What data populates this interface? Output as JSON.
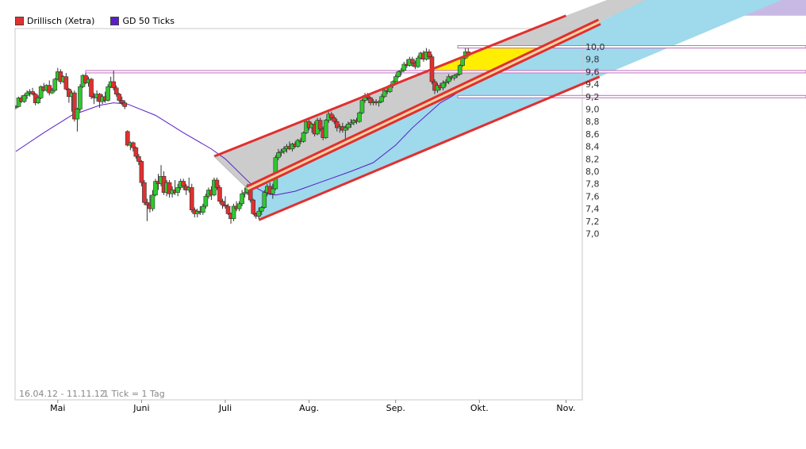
{
  "legend": {
    "price_label": "Drillisch (Xetra)",
    "price_color": "#e03030",
    "ma_label": "GD 50 Ticks",
    "ma_color": "#5a1ec8"
  },
  "footer": {
    "date_range": "16.04.12 - 11.11.12",
    "tick_info": "1 Tick = 1 Tag"
  },
  "chart_data": {
    "type": "candlestick",
    "instrument": "Drillisch (Xetra)",
    "ylim": [
      6.9,
      10.1
    ],
    "y_ticks": [
      "7,0",
      "7,2",
      "7,4",
      "7,6",
      "7,8",
      "8,0",
      "8,2",
      "8,4",
      "8,6",
      "8,8",
      "9,0",
      "9,2",
      "9,4",
      "9,6",
      "9,8",
      "10,0"
    ],
    "y_tick_values": [
      7.0,
      7.2,
      7.4,
      7.6,
      7.8,
      8.0,
      8.2,
      8.4,
      8.6,
      8.8,
      9.0,
      9.2,
      9.4,
      9.6,
      9.8,
      10.0
    ],
    "x_labels": [
      "Mai",
      "Juni",
      "Juli",
      "Aug.",
      "Sep.",
      "Okt.",
      "Nov."
    ],
    "x_label_days": [
      15,
      45,
      75,
      105,
      136,
      166,
      197
    ],
    "x_range_days": [
      0,
      209
    ],
    "grid": false,
    "legend_placement": "top-left",
    "up_color": "#2ec82e",
    "down_color": "#e03030",
    "candles": [
      [
        0,
        9.02,
        9.06,
        9.0,
        9.04
      ],
      [
        1,
        9.04,
        9.2,
        9.03,
        9.18
      ],
      [
        2,
        9.18,
        9.22,
        9.1,
        9.12
      ],
      [
        3,
        9.12,
        9.24,
        9.1,
        9.22
      ],
      [
        4,
        9.22,
        9.3,
        9.16,
        9.26
      ],
      [
        5,
        9.26,
        9.32,
        9.2,
        9.28
      ],
      [
        6,
        9.28,
        9.34,
        9.22,
        9.24
      ],
      [
        7,
        9.24,
        9.26,
        9.06,
        9.1
      ],
      [
        8,
        9.1,
        9.22,
        9.08,
        9.18
      ],
      [
        9,
        9.18,
        9.38,
        9.16,
        9.36
      ],
      [
        10,
        9.36,
        9.42,
        9.28,
        9.3
      ],
      [
        11,
        9.3,
        9.4,
        9.28,
        9.38
      ],
      [
        12,
        9.38,
        9.46,
        9.22,
        9.26
      ],
      [
        13,
        9.26,
        9.34,
        9.24,
        9.3
      ],
      [
        14,
        9.3,
        9.5,
        9.28,
        9.48
      ],
      [
        15,
        9.48,
        9.66,
        9.46,
        9.6
      ],
      [
        16,
        9.6,
        9.64,
        9.4,
        9.44
      ],
      [
        17,
        9.44,
        9.54,
        9.42,
        9.52
      ],
      [
        18,
        9.52,
        9.58,
        9.3,
        9.32
      ],
      [
        19,
        9.32,
        9.34,
        9.1,
        9.2
      ],
      [
        20,
        9.2,
        9.3,
        8.96,
        9.26
      ],
      [
        21,
        9.26,
        9.3,
        8.8,
        8.84
      ],
      [
        22,
        8.84,
        9.02,
        8.64,
        9.0
      ],
      [
        23,
        9.0,
        9.4,
        8.96,
        9.36
      ],
      [
        24,
        9.36,
        9.56,
        9.34,
        9.54
      ],
      [
        25,
        9.54,
        9.58,
        9.4,
        9.42
      ],
      [
        26,
        9.42,
        9.52,
        9.36,
        9.48
      ],
      [
        27,
        9.48,
        9.5,
        9.16,
        9.2
      ],
      [
        28,
        9.2,
        9.26,
        9.08,
        9.18
      ],
      [
        29,
        9.18,
        9.3,
        9.12,
        9.24
      ],
      [
        30,
        9.24,
        9.26,
        9.02,
        9.12
      ],
      [
        31,
        9.12,
        9.24,
        9.08,
        9.2
      ],
      [
        32,
        9.2,
        9.28,
        9.1,
        9.14
      ],
      [
        33,
        9.14,
        9.4,
        9.12,
        9.36
      ],
      [
        34,
        9.36,
        9.52,
        9.34,
        9.44
      ],
      [
        35,
        9.44,
        9.62,
        9.3,
        9.34
      ],
      [
        36,
        9.34,
        9.38,
        9.2,
        9.24
      ],
      [
        37,
        9.24,
        9.26,
        9.1,
        9.14
      ],
      [
        38,
        9.14,
        9.2,
        9.06,
        9.1
      ],
      [
        39,
        9.1,
        9.14,
        9.0,
        9.04
      ],
      [
        40,
        8.64,
        8.66,
        8.4,
        8.42
      ],
      [
        41,
        8.42,
        8.48,
        8.34,
        8.46
      ],
      [
        42,
        8.46,
        8.48,
        8.32,
        8.38
      ],
      [
        43,
        8.38,
        8.4,
        8.2,
        8.24
      ],
      [
        44,
        8.24,
        8.28,
        8.1,
        8.16
      ],
      [
        45,
        8.16,
        8.18,
        7.76,
        7.82
      ],
      [
        46,
        7.82,
        7.86,
        7.46,
        7.5
      ],
      [
        47,
        7.5,
        7.56,
        7.2,
        7.46
      ],
      [
        48,
        7.46,
        7.62,
        7.34,
        7.4
      ],
      [
        49,
        7.4,
        7.7,
        7.36,
        7.62
      ],
      [
        50,
        7.62,
        7.88,
        7.6,
        7.84
      ],
      [
        51,
        7.84,
        7.96,
        7.7,
        7.8
      ],
      [
        52,
        7.8,
        8.1,
        7.76,
        7.92
      ],
      [
        53,
        7.92,
        8.0,
        7.62,
        7.66
      ],
      [
        54,
        7.66,
        7.86,
        7.6,
        7.82
      ],
      [
        55,
        7.82,
        7.86,
        7.58,
        7.64
      ],
      [
        56,
        7.64,
        7.76,
        7.58,
        7.7
      ],
      [
        57,
        7.7,
        7.86,
        7.62,
        7.66
      ],
      [
        58,
        7.66,
        7.8,
        7.6,
        7.74
      ],
      [
        59,
        7.74,
        7.88,
        7.7,
        7.84
      ],
      [
        60,
        7.84,
        7.88,
        7.7,
        7.76
      ],
      [
        61,
        7.76,
        7.8,
        7.62,
        7.7
      ],
      [
        62,
        7.7,
        7.9,
        7.66,
        7.74
      ],
      [
        63,
        7.74,
        7.8,
        7.34,
        7.38
      ],
      [
        64,
        7.38,
        7.42,
        7.26,
        7.32
      ],
      [
        65,
        7.32,
        7.4,
        7.26,
        7.36
      ],
      [
        66,
        7.36,
        7.44,
        7.3,
        7.34
      ],
      [
        67,
        7.34,
        7.48,
        7.3,
        7.44
      ],
      [
        68,
        7.44,
        7.64,
        7.4,
        7.6
      ],
      [
        69,
        7.6,
        7.74,
        7.56,
        7.7
      ],
      [
        70,
        7.7,
        7.76,
        7.54,
        7.62
      ],
      [
        71,
        7.62,
        7.9,
        7.6,
        7.86
      ],
      [
        72,
        7.86,
        7.9,
        7.7,
        7.74
      ],
      [
        73,
        7.74,
        7.78,
        7.48,
        7.52
      ],
      [
        74,
        7.52,
        7.56,
        7.4,
        7.46
      ],
      [
        75,
        7.46,
        7.6,
        7.4,
        7.44
      ],
      [
        76,
        7.44,
        7.48,
        7.3,
        7.32
      ],
      [
        77,
        7.32,
        7.34,
        7.16,
        7.24
      ],
      [
        78,
        7.24,
        7.48,
        7.2,
        7.44
      ],
      [
        79,
        7.44,
        7.52,
        7.36,
        7.4
      ],
      [
        80,
        7.4,
        7.52,
        7.36,
        7.48
      ],
      [
        81,
        7.48,
        7.7,
        7.44,
        7.64
      ],
      [
        82,
        7.64,
        7.74,
        7.58,
        7.66
      ],
      [
        83,
        7.66,
        7.8,
        7.62,
        7.76
      ],
      [
        84,
        7.76,
        7.78,
        7.5,
        7.54
      ],
      [
        85,
        7.54,
        7.56,
        7.3,
        7.32
      ],
      [
        86,
        7.32,
        7.34,
        7.24,
        7.28
      ],
      [
        87,
        7.28,
        7.42,
        7.24,
        7.36
      ],
      [
        88,
        7.36,
        7.44,
        7.3,
        7.42
      ],
      [
        89,
        7.42,
        7.7,
        7.4,
        7.66
      ],
      [
        90,
        7.66,
        7.8,
        7.6,
        7.76
      ],
      [
        91,
        7.76,
        7.82,
        7.62,
        7.64
      ],
      [
        92,
        7.64,
        7.8,
        7.56,
        7.72
      ],
      [
        93,
        7.72,
        8.26,
        7.7,
        8.22
      ],
      [
        94,
        8.22,
        8.36,
        8.18,
        8.3
      ],
      [
        95,
        8.3,
        8.36,
        8.24,
        8.32
      ],
      [
        96,
        8.32,
        8.4,
        8.28,
        8.36
      ],
      [
        97,
        8.36,
        8.44,
        8.3,
        8.4
      ],
      [
        98,
        8.4,
        8.48,
        8.34,
        8.36
      ],
      [
        99,
        8.36,
        8.46,
        8.32,
        8.44
      ],
      [
        100,
        8.44,
        8.48,
        8.38,
        8.4
      ],
      [
        101,
        8.4,
        8.52,
        8.38,
        8.5
      ],
      [
        102,
        8.5,
        8.54,
        8.44,
        8.48
      ],
      [
        103,
        8.48,
        8.64,
        8.46,
        8.62
      ],
      [
        104,
        8.62,
        8.84,
        8.6,
        8.8
      ],
      [
        105,
        8.8,
        8.86,
        8.66,
        8.7
      ],
      [
        106,
        8.7,
        8.78,
        8.62,
        8.76
      ],
      [
        107,
        8.76,
        8.8,
        8.56,
        8.6
      ],
      [
        108,
        8.6,
        8.86,
        8.58,
        8.82
      ],
      [
        109,
        8.82,
        8.86,
        8.64,
        8.68
      ],
      [
        110,
        8.68,
        8.72,
        8.5,
        8.54
      ],
      [
        111,
        8.54,
        8.84,
        8.52,
        8.82
      ],
      [
        112,
        8.82,
        8.98,
        8.78,
        8.92
      ],
      [
        113,
        8.92,
        8.96,
        8.82,
        8.86
      ],
      [
        114,
        8.86,
        8.9,
        8.76,
        8.8
      ],
      [
        115,
        8.8,
        8.84,
        8.64,
        8.7
      ],
      [
        116,
        8.7,
        8.76,
        8.62,
        8.72
      ],
      [
        117,
        8.72,
        8.78,
        8.62,
        8.66
      ],
      [
        118,
        8.66,
        8.74,
        8.48,
        8.7
      ],
      [
        119,
        8.7,
        8.8,
        8.66,
        8.76
      ],
      [
        120,
        8.76,
        8.84,
        8.7,
        8.78
      ],
      [
        121,
        8.78,
        8.84,
        8.74,
        8.82
      ],
      [
        122,
        8.82,
        8.86,
        8.76,
        8.8
      ],
      [
        123,
        8.8,
        8.96,
        8.78,
        8.94
      ],
      [
        124,
        8.94,
        9.16,
        8.92,
        9.14
      ],
      [
        125,
        9.14,
        9.26,
        9.1,
        9.22
      ],
      [
        126,
        9.22,
        9.26,
        9.14,
        9.18
      ],
      [
        127,
        9.18,
        9.2,
        9.06,
        9.1
      ],
      [
        128,
        9.1,
        9.16,
        9.06,
        9.12
      ],
      [
        129,
        9.12,
        9.16,
        9.06,
        9.1
      ],
      [
        130,
        9.1,
        9.14,
        9.04,
        9.12
      ],
      [
        131,
        9.12,
        9.24,
        9.1,
        9.2
      ],
      [
        132,
        9.2,
        9.32,
        9.18,
        9.3
      ],
      [
        133,
        9.3,
        9.36,
        9.24,
        9.28
      ],
      [
        134,
        9.28,
        9.4,
        9.26,
        9.38
      ],
      [
        135,
        9.38,
        9.46,
        9.34,
        9.44
      ],
      [
        136,
        9.44,
        9.56,
        9.42,
        9.52
      ],
      [
        137,
        9.52,
        9.62,
        9.5,
        9.6
      ],
      [
        138,
        9.6,
        9.66,
        9.54,
        9.62
      ],
      [
        139,
        9.62,
        9.76,
        9.6,
        9.72
      ],
      [
        140,
        9.72,
        9.8,
        9.66,
        9.7
      ],
      [
        141,
        9.7,
        9.84,
        9.68,
        9.8
      ],
      [
        142,
        9.8,
        9.84,
        9.68,
        9.74
      ],
      [
        143,
        9.74,
        9.78,
        9.64,
        9.68
      ],
      [
        144,
        9.68,
        9.86,
        9.66,
        9.82
      ],
      [
        145,
        9.82,
        9.92,
        9.8,
        9.9
      ],
      [
        146,
        9.9,
        9.94,
        9.76,
        9.8
      ],
      [
        147,
        9.8,
        9.98,
        9.78,
        9.92
      ],
      [
        148,
        9.92,
        9.96,
        9.8,
        9.84
      ],
      [
        149,
        9.84,
        9.88,
        9.4,
        9.44
      ],
      [
        150,
        9.44,
        9.48,
        9.24,
        9.3
      ],
      [
        151,
        9.3,
        9.42,
        9.26,
        9.38
      ],
      [
        152,
        9.38,
        9.42,
        9.3,
        9.34
      ],
      [
        153,
        9.34,
        9.46,
        9.3,
        9.42
      ],
      [
        154,
        9.42,
        9.48,
        9.36,
        9.44
      ],
      [
        155,
        9.44,
        9.56,
        9.4,
        9.52
      ],
      [
        156,
        9.52,
        9.54,
        9.46,
        9.5
      ],
      [
        157,
        9.5,
        9.56,
        9.46,
        9.54
      ],
      [
        158,
        9.54,
        9.58,
        9.5,
        9.56
      ],
      [
        159,
        9.56,
        9.72,
        9.54,
        9.7
      ],
      [
        160,
        9.7,
        9.84,
        9.68,
        9.82
      ],
      [
        161,
        9.82,
        9.98,
        9.8,
        9.92
      ],
      [
        162,
        9.92,
        9.98,
        9.84,
        9.86
      ]
    ],
    "moving_average_points": [
      [
        0,
        8.32
      ],
      [
        10,
        8.62
      ],
      [
        20,
        8.9
      ],
      [
        30,
        9.06
      ],
      [
        35,
        9.1
      ],
      [
        40,
        9.08
      ],
      [
        50,
        8.9
      ],
      [
        60,
        8.62
      ],
      [
        70,
        8.36
      ],
      [
        75,
        8.2
      ],
      [
        80,
        7.98
      ],
      [
        85,
        7.76
      ],
      [
        90,
        7.64
      ],
      [
        93,
        7.62
      ],
      [
        100,
        7.68
      ],
      [
        110,
        7.84
      ],
      [
        120,
        8.0
      ],
      [
        128,
        8.14
      ],
      [
        136,
        8.42
      ],
      [
        142,
        8.7
      ],
      [
        148,
        8.94
      ],
      [
        152,
        9.1
      ],
      [
        156,
        9.2
      ],
      [
        160,
        9.32
      ],
      [
        163,
        9.4
      ],
      [
        166,
        9.46
      ]
    ],
    "upper_channel": {
      "start": [
        71,
        8.24
      ],
      "end": [
        197,
        10.5
      ]
    },
    "middle_channel": {
      "start": [
        83,
        7.72
      ],
      "end": [
        209,
        10.4
      ]
    },
    "lower_channel": {
      "start": [
        87,
        7.22
      ],
      "end": [
        209,
        9.52
      ]
    },
    "fan_end": [
      209,
      9.0
    ],
    "horizontal_levels": [
      9.6,
      9.2,
      10.0
    ],
    "rect_band": {
      "from_day": 147,
      "to_day": 209,
      "bottom": 9.6,
      "top": 10.0
    },
    "upper_fill_color": "#cccccc",
    "lower_fill_color": "#9ed9ec",
    "top_fill_color": "#c8b8e4",
    "band_fill_color": "#ffee00",
    "channel_line_color": "#e03030",
    "level_line_color": "#c070c0"
  }
}
